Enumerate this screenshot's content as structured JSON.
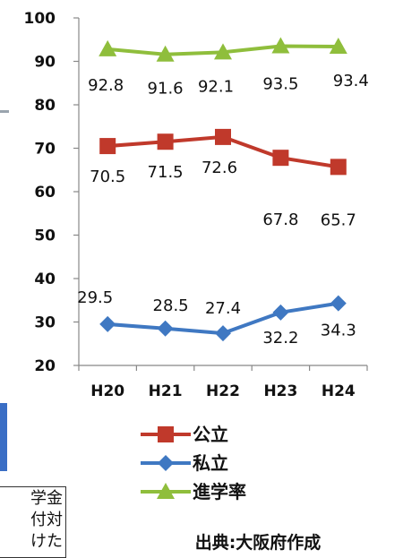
{
  "chart_data": {
    "type": "line",
    "categories": [
      "H20",
      "H21",
      "H22",
      "H23",
      "H24"
    ],
    "ylim": [
      20,
      100
    ],
    "yticks": [
      20,
      30,
      40,
      50,
      60,
      70,
      80,
      90,
      100
    ],
    "grid": false,
    "legend_position": "bottom",
    "series": [
      {
        "name": "公立",
        "color": "#c0392b",
        "marker": "square",
        "values": [
          70.5,
          71.5,
          72.6,
          67.8,
          65.7
        ]
      },
      {
        "name": "私立",
        "color": "#3f78c2",
        "marker": "diamond",
        "values": [
          29.5,
          28.5,
          27.4,
          32.2,
          34.3
        ]
      },
      {
        "name": "進学率",
        "color": "#8fbe3c",
        "marker": "triangle",
        "values": [
          92.8,
          91.6,
          92.1,
          93.5,
          93.4
        ]
      }
    ]
  },
  "source_text": "出典:大阪府作成",
  "side_box": {
    "lines": [
      "学金",
      "付対",
      "けた"
    ]
  }
}
